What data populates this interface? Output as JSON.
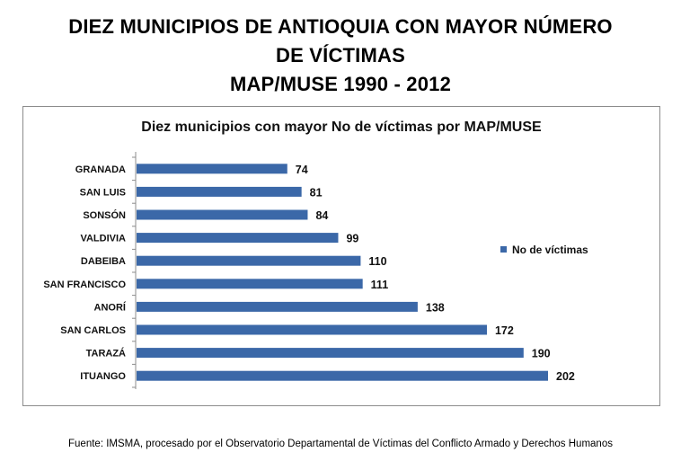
{
  "title": {
    "line1": "DIEZ MUNICIPIOS DE ANTIOQUIA  CON MAYOR NÚMERO",
    "line2": "DE VÍCTIMAS",
    "line3": "MAP/MUSE 1990 - 2012"
  },
  "footer": "Fuente: IMSMA, procesado por el Observatorio Departamental de Víctimas del Conflicto Armado y Derechos Humanos",
  "colors": {
    "bar": "#3b68a8",
    "axis": "#8c8c8c"
  },
  "chart_data": {
    "type": "bar",
    "orientation": "horizontal",
    "title": "Diez municipios con mayor No de víctimas por MAP/MUSE",
    "categories": [
      "GRANADA",
      "SAN LUIS",
      "SONSÓN",
      "VALDIVIA",
      "DABEIBA",
      "SAN FRANCISCO",
      "ANORÍ",
      "SAN CARLOS",
      "TARAZÁ",
      "ITUANGO"
    ],
    "series": [
      {
        "name": "No de víctimas",
        "values": [
          74,
          81,
          84,
          99,
          110,
          111,
          138,
          172,
          190,
          202
        ]
      }
    ],
    "xlim": [
      0,
      202
    ],
    "grid": false,
    "data_labels": true,
    "legend_position": "right"
  }
}
